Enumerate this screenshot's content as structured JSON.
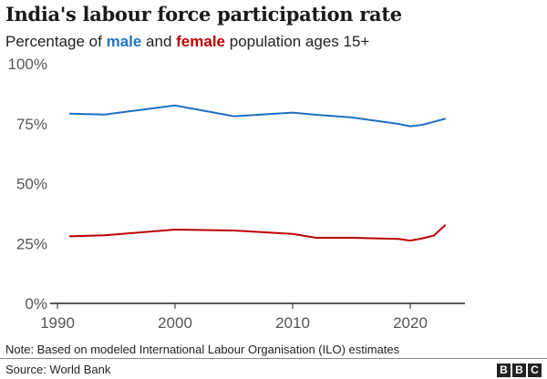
{
  "chart_data": {
    "type": "line",
    "title": "India's labour force participation rate",
    "subtitle": {
      "prefix": "Percentage of ",
      "male": "male",
      "mid": " and ",
      "female": "female",
      "suffix": " population ages 15+"
    },
    "xlabel": "",
    "ylabel": "",
    "xlim": [
      1990,
      2025
    ],
    "ylim": [
      0,
      100
    ],
    "x_ticks": [
      1990,
      2000,
      2010,
      2020
    ],
    "y_ticks": [
      {
        "v": 0,
        "label": "0%"
      },
      {
        "v": 25,
        "label": "25%"
      },
      {
        "v": 50,
        "label": "50%"
      },
      {
        "v": 75,
        "label": "75%"
      },
      {
        "v": 100,
        "label": "100%"
      }
    ],
    "grid": false,
    "series": [
      {
        "name": "male",
        "color": "#1f6fbf",
        "points": [
          [
            1991,
            79.2
          ],
          [
            1994,
            78.8
          ],
          [
            2000,
            82.6
          ],
          [
            2005,
            78.1
          ],
          [
            2010,
            79.6
          ],
          [
            2012,
            78.7
          ],
          [
            2015,
            77.6
          ],
          [
            2019,
            74.9
          ],
          [
            2020,
            73.9
          ],
          [
            2021,
            74.5
          ],
          [
            2023,
            77.1
          ]
        ]
      },
      {
        "name": "female",
        "color": "#bb0000",
        "points": [
          [
            1991,
            28.0
          ],
          [
            1994,
            28.4
          ],
          [
            2000,
            30.8
          ],
          [
            2005,
            30.4
          ],
          [
            2010,
            29.0
          ],
          [
            2012,
            27.4
          ],
          [
            2015,
            27.4
          ],
          [
            2019,
            26.9
          ],
          [
            2020,
            26.2
          ],
          [
            2021,
            27.1
          ],
          [
            2022,
            28.3
          ],
          [
            2023,
            32.8
          ]
        ]
      }
    ]
  },
  "note": "Note: Based on modeled International Labour Organisation (ILO) estimates",
  "source": "Source: World Bank",
  "logo": [
    "B",
    "B",
    "C"
  ]
}
